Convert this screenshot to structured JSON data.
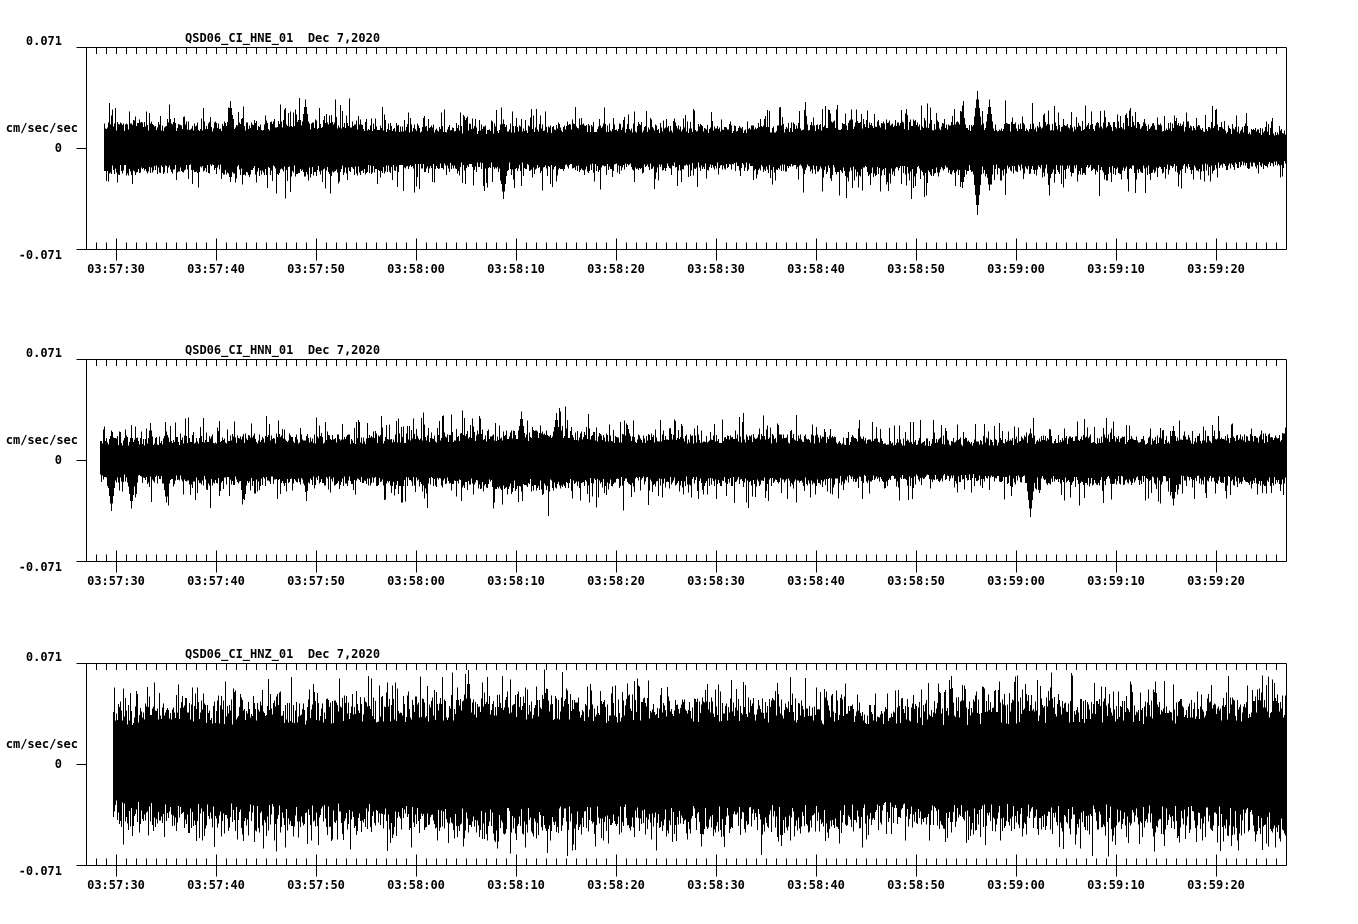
{
  "page": {
    "background": "#ffffff",
    "ink": "#000000"
  },
  "chart_data": [
    {
      "type": "line",
      "kind": "seismogram-trace",
      "title": "QSD06_CI_HNE_01  Dec 7,2020",
      "station_channel": "QSD06_CI_HNE_01",
      "date": "Dec 7,2020",
      "ylabel": "cm/sec/sec",
      "ymax_label": "0.071",
      "ymid_label": "0",
      "ymin_label": "-0.071",
      "ylim": [
        -0.071,
        0.071
      ],
      "x_axis": {
        "start": "03:57:27",
        "end": "03:59:27",
        "major_interval_s": 10,
        "minor_interval_s": 1
      },
      "x_major_labels": [
        "03:57:30",
        "03:57:40",
        "03:57:50",
        "03:58:00",
        "03:58:10",
        "03:58:20",
        "03:58:30",
        "03:58:40",
        "03:58:50",
        "03:59:00",
        "03:59:10",
        "03:59:20"
      ],
      "grid": false,
      "line_color": "#000000",
      "waveform": {
        "seed": 7,
        "start_s": 1.8,
        "core_amp": 0.0135,
        "spike_amp": 0.016,
        "spike_prob": 0.22,
        "env_var": 0.22,
        "events": [
          {
            "t": 14.4,
            "up": 0.033,
            "dn": 0.024
          },
          {
            "t": 21.9,
            "up": 0.034,
            "dn": 0.02
          },
          {
            "t": 41.7,
            "up": 0.02,
            "dn": 0.036
          },
          {
            "t": 87.6,
            "up": 0.03,
            "dn": 0.028
          },
          {
            "t": 89.1,
            "up": 0.04,
            "dn": 0.047
          },
          {
            "t": 90.3,
            "up": 0.034,
            "dn": 0.03
          }
        ]
      }
    },
    {
      "type": "line",
      "kind": "seismogram-trace",
      "title": "QSD06_CI_HNN_01  Dec 7,2020",
      "station_channel": "QSD06_CI_HNN_01",
      "date": "Dec 7,2020",
      "ylabel": "cm/sec/sec",
      "ymax_label": "0.071",
      "ymid_label": "0",
      "ymin_label": "-0.071",
      "ylim": [
        -0.071,
        0.071
      ],
      "x_axis": {
        "start": "03:57:27",
        "end": "03:59:27",
        "major_interval_s": 10,
        "minor_interval_s": 1
      },
      "x_major_labels": [
        "03:57:30",
        "03:57:40",
        "03:57:50",
        "03:58:00",
        "03:58:10",
        "03:58:20",
        "03:58:30",
        "03:58:40",
        "03:58:50",
        "03:59:00",
        "03:59:10",
        "03:59:20"
      ],
      "grid": false,
      "line_color": "#000000",
      "waveform": {
        "seed": 13,
        "start_s": 1.4,
        "core_amp": 0.014,
        "spike_amp": 0.017,
        "spike_prob": 0.22,
        "env_var": 0.18,
        "events": [
          {
            "t": 2.5,
            "up": 0.02,
            "dn": 0.036
          },
          {
            "t": 4.5,
            "up": 0.018,
            "dn": 0.034
          },
          {
            "t": 8.0,
            "up": 0.02,
            "dn": 0.03
          },
          {
            "t": 43.5,
            "up": 0.034,
            "dn": 0.022
          },
          {
            "t": 47.0,
            "up": 0.033,
            "dn": 0.02
          },
          {
            "t": 94.4,
            "up": 0.022,
            "dn": 0.04
          },
          {
            "t": 108.7,
            "up": 0.024,
            "dn": 0.032
          }
        ]
      }
    },
    {
      "type": "line",
      "kind": "seismogram-trace",
      "title": "QSD06_CI_HNZ_01  Dec 7,2020",
      "station_channel": "QSD06_CI_HNZ_01",
      "date": "Dec 7,2020",
      "ylabel": "cm/sec/sec",
      "ymax_label": "0.071",
      "ymid_label": "0",
      "ymin_label": "-0.071",
      "ylim": [
        -0.071,
        0.071
      ],
      "x_axis": {
        "start": "03:57:27",
        "end": "03:59:27",
        "major_interval_s": 10,
        "minor_interval_s": 1
      },
      "x_major_labels": [
        "03:57:30",
        "03:57:40",
        "03:57:50",
        "03:58:00",
        "03:58:10",
        "03:58:20",
        "03:58:30",
        "03:58:40",
        "03:58:50",
        "03:59:00",
        "03:59:10",
        "03:59:20"
      ],
      "grid": false,
      "line_color": "#000000",
      "waveform": {
        "seed": 42,
        "start_s": 2.7,
        "core_amp": 0.035,
        "spike_amp": 0.019,
        "spike_prob": 0.45,
        "env_var": 0.1,
        "events": [
          {
            "t": 38.2,
            "up": 0.066,
            "dn": 0.045
          },
          {
            "t": 40.9,
            "up": 0.04,
            "dn": 0.055
          },
          {
            "t": 61.5,
            "up": 0.042,
            "dn": 0.058
          },
          {
            "t": 86.5,
            "up": 0.062,
            "dn": 0.048
          },
          {
            "t": 106.9,
            "up": 0.058,
            "dn": 0.046
          }
        ]
      }
    }
  ]
}
